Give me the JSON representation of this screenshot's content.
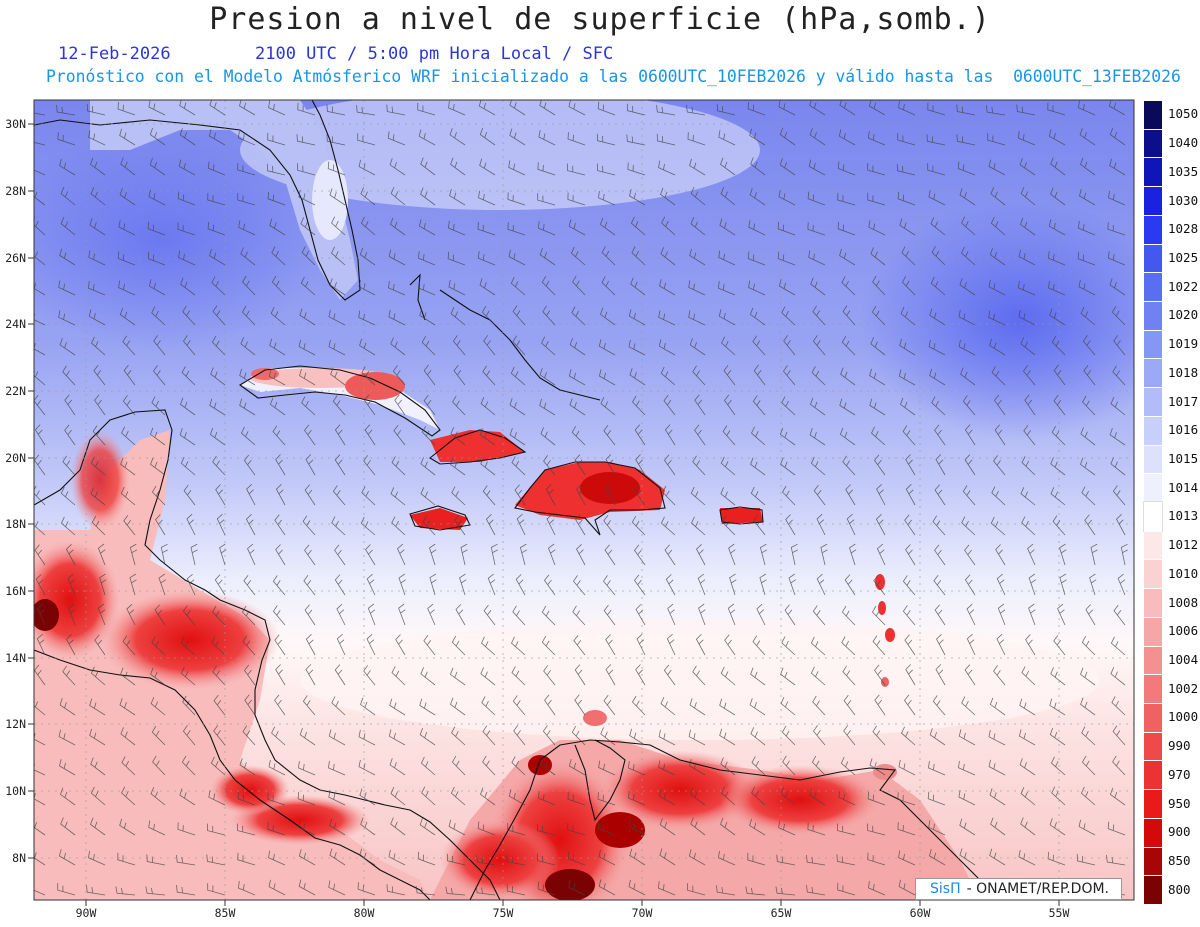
{
  "header": {
    "title": "Presion a nivel de superficie (hPa,somb.)",
    "date": "12-Feb-2026",
    "time_info": "2100 UTC / 5:00 pm Hora Local / SFC",
    "model_info": "Pronóstico con el Modelo Atmósferico WRF inicializado a las 0600UTC_10FEB2026 y válido hasta las  0600UTC_13FEB2026"
  },
  "map": {
    "lat_labels": [
      "30N",
      "28N",
      "26N",
      "24N",
      "22N",
      "20N",
      "18N",
      "16N",
      "14N",
      "12N",
      "10N",
      "8N"
    ],
    "lon_labels": [
      "90W",
      "85W",
      "80W",
      "75W",
      "70W",
      "65W",
      "60W",
      "55W"
    ]
  },
  "colorbar": {
    "levels": [
      {
        "label": "1050",
        "color": "#0a0a5a"
      },
      {
        "label": "1040",
        "color": "#0c0f8a"
      },
      {
        "label": "1035",
        "color": "#1015b8"
      },
      {
        "label": "1030",
        "color": "#1a22e0"
      },
      {
        "label": "1028",
        "color": "#2a3af0"
      },
      {
        "label": "1025",
        "color": "#4458f0"
      },
      {
        "label": "1022",
        "color": "#5a6ef0"
      },
      {
        "label": "1020",
        "color": "#7082f2"
      },
      {
        "label": "1019",
        "color": "#8696f4"
      },
      {
        "label": "1018",
        "color": "#9ca9f6"
      },
      {
        "label": "1017",
        "color": "#b2bcf8"
      },
      {
        "label": "1016",
        "color": "#c8cffa"
      },
      {
        "label": "1015",
        "color": "#dde1fc"
      },
      {
        "label": "1014",
        "color": "#eef0fe"
      },
      {
        "label": "1013",
        "color": "#ffffff"
      },
      {
        "label": "1012",
        "color": "#fde8e8"
      },
      {
        "label": "1010",
        "color": "#fbd2d2"
      },
      {
        "label": "1008",
        "color": "#f8bcbc"
      },
      {
        "label": "1006",
        "color": "#f6a6a6"
      },
      {
        "label": "1004",
        "color": "#f49090"
      },
      {
        "label": "1002",
        "color": "#f27a7a"
      },
      {
        "label": "1000",
        "color": "#f06262"
      },
      {
        "label": "990",
        "color": "#ee4a4a"
      },
      {
        "label": "970",
        "color": "#ec3232"
      },
      {
        "label": "950",
        "color": "#e81a1a"
      },
      {
        "label": "900",
        "color": "#d40a0a"
      },
      {
        "label": "850",
        "color": "#a80606"
      },
      {
        "label": "800",
        "color": "#7a0202"
      }
    ]
  },
  "credit": {
    "brand": "SisΠ",
    "text": "- ONAMET/REP.DOM."
  }
}
